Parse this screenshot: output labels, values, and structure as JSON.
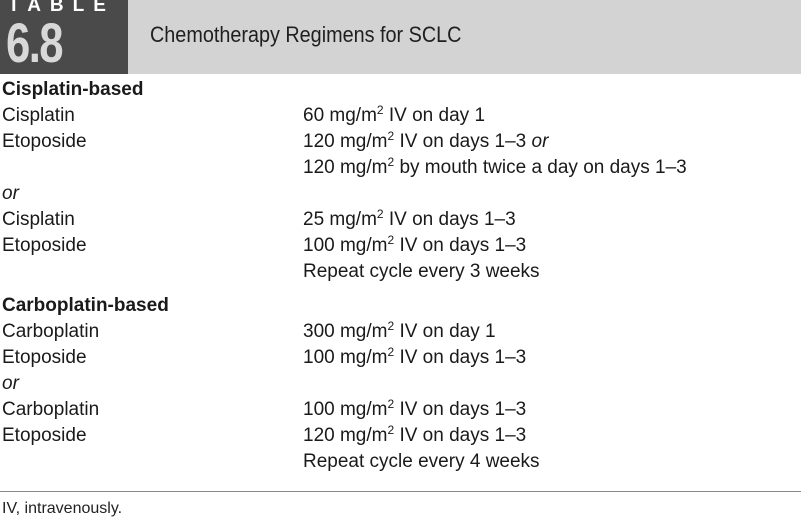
{
  "table": {
    "label": "TABLE",
    "number": "6.8",
    "title": "Chemotherapy Regimens for SCLC"
  },
  "sections": [
    {
      "heading": "Cisplatin-based",
      "lines": [
        {
          "drug": "Cisplatin",
          "dose": "60 mg/m",
          "sup": "2",
          "rest": " IV on day 1"
        },
        {
          "drug": "Etoposide",
          "dose": "120 mg/m",
          "sup": "2",
          "rest": " IV on days 1–3 ",
          "or": "or"
        },
        {
          "drug": "",
          "dose": "120 mg/m",
          "sup": "2",
          "rest": " by mouth twice a day on days 1–3"
        },
        {
          "alt": "or"
        },
        {
          "drug": "Cisplatin",
          "dose": "25 mg/m",
          "sup": "2",
          "rest": " IV on days 1–3"
        },
        {
          "drug": "Etoposide",
          "dose": "100 mg/m",
          "sup": "2",
          "rest": " IV on days 1–3"
        },
        {
          "drug": "",
          "plain": "Repeat cycle every 3 weeks"
        }
      ]
    },
    {
      "heading": "Carboplatin-based",
      "lines": [
        {
          "drug": "Carboplatin",
          "dose": "300 mg/m",
          "sup": "2",
          "rest": " IV on day 1"
        },
        {
          "drug": "Etoposide",
          "dose": "100 mg/m",
          "sup": "2",
          "rest": " IV on days 1–3"
        },
        {
          "alt": "or"
        },
        {
          "drug": "Carboplatin",
          "dose": "100 mg/m",
          "sup": "2",
          "rest": " IV on days 1–3"
        },
        {
          "drug": "Etoposide",
          "dose": "120 mg/m",
          "sup": "2",
          "rest": " IV on days 1–3"
        },
        {
          "drug": "",
          "plain": "Repeat cycle every 4 weeks"
        }
      ]
    }
  ],
  "footnote": "IV, intravenously."
}
